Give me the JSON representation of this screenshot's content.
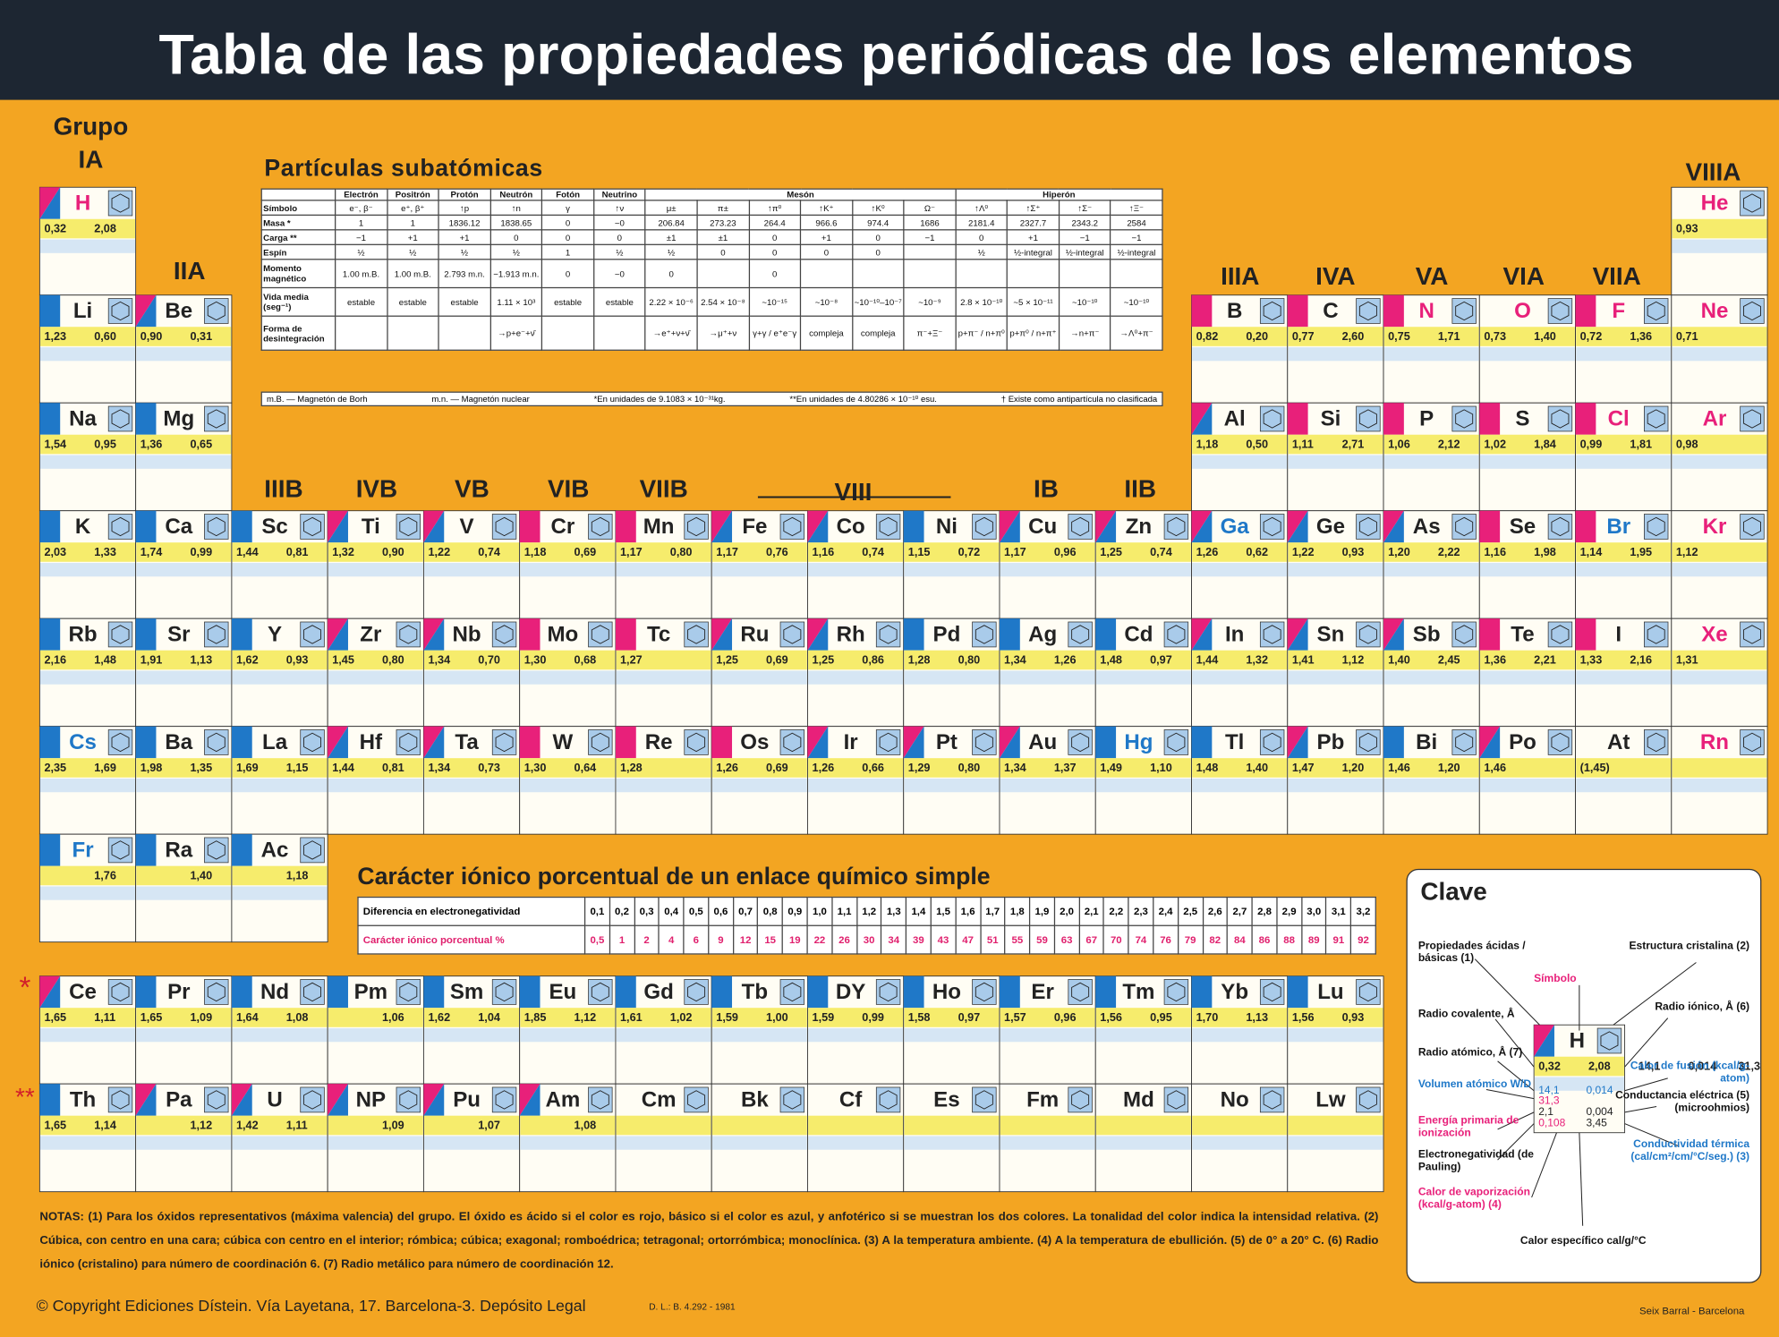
{
  "header": {
    "title": "Tabla de las propiedades periódicas de los elementos"
  },
  "group_prefix": "Grupo",
  "groups": [
    "IA",
    "IIA",
    "IIIB",
    "IVB",
    "VB",
    "VIB",
    "VIIB",
    "VIII",
    "IB",
    "IIB",
    "IIIA",
    "IVA",
    "VA",
    "VIA",
    "VIIA",
    "VIIIA"
  ],
  "periods": [
    [
      {
        "symbol": "H",
        "acid_base": "ab",
        "color": "#e8207a",
        "values": [
          "0,32",
          "2,08"
        ]
      },
      null,
      null,
      null,
      null,
      null,
      null,
      null,
      null,
      null,
      null,
      null,
      null,
      null,
      null,
      null,
      null,
      {
        "symbol": "He",
        "color": "#e8207a",
        "values": [
          "0,93",
          null
        ]
      }
    ],
    [
      {
        "symbol": "Li",
        "acid_base": "b",
        "values": [
          "1,23",
          "0,60"
        ]
      },
      {
        "symbol": "Be",
        "acid_base": "ab",
        "values": [
          "0,90",
          "0,31"
        ]
      },
      null,
      null,
      null,
      null,
      null,
      null,
      null,
      null,
      null,
      null,
      {
        "symbol": "B",
        "acid_base": "a",
        "values": [
          "0,82",
          "0,20"
        ]
      },
      {
        "symbol": "C",
        "acid_base": "a",
        "values": [
          "0,77",
          "2,60"
        ]
      },
      {
        "symbol": "N",
        "acid_base": "a",
        "color": "#e8207a",
        "values": [
          "0,75",
          "1,71"
        ]
      },
      {
        "symbol": "O",
        "color": "#e8207a",
        "values": [
          "0,73",
          "1,40"
        ]
      },
      {
        "symbol": "F",
        "acid_base": "a",
        "color": "#e8207a",
        "values": [
          "0,72",
          "1,36"
        ]
      },
      {
        "symbol": "Ne",
        "color": "#e8207a",
        "values": [
          "0,71",
          null
        ]
      }
    ],
    [
      {
        "symbol": "Na",
        "acid_base": "b",
        "values": [
          "1,54",
          "0,95"
        ]
      },
      {
        "symbol": "Mg",
        "acid_base": "b",
        "values": [
          "1,36",
          "0,65"
        ]
      },
      null,
      null,
      null,
      null,
      null,
      null,
      null,
      null,
      null,
      null,
      {
        "symbol": "Al",
        "acid_base": "ab",
        "values": [
          "1,18",
          "0,50"
        ]
      },
      {
        "symbol": "Si",
        "acid_base": "a",
        "values": [
          "1,11",
          "2,71"
        ]
      },
      {
        "symbol": "P",
        "acid_base": "a",
        "values": [
          "1,06",
          "2,12"
        ]
      },
      {
        "symbol": "S",
        "acid_base": "a",
        "values": [
          "1,02",
          "1,84"
        ]
      },
      {
        "symbol": "Cl",
        "acid_base": "a",
        "color": "#e8207a",
        "values": [
          "0,99",
          "1,81"
        ]
      },
      {
        "symbol": "Ar",
        "color": "#e8207a",
        "values": [
          "0,98",
          null
        ]
      }
    ],
    [
      {
        "symbol": "K",
        "acid_base": "b",
        "values": [
          "2,03",
          "1,33"
        ]
      },
      {
        "symbol": "Ca",
        "acid_base": "b",
        "values": [
          "1,74",
          "0,99"
        ]
      },
      {
        "symbol": "Sc",
        "acid_base": "b",
        "values": [
          "1,44",
          "0,81"
        ]
      },
      {
        "symbol": "Ti",
        "acid_base": "ab",
        "values": [
          "1,32",
          "0,90"
        ]
      },
      {
        "symbol": "V",
        "acid_base": "ab",
        "values": [
          "1,22",
          "0,74"
        ]
      },
      {
        "symbol": "Cr",
        "acid_base": "a",
        "values": [
          "1,18",
          "0,69"
        ]
      },
      {
        "symbol": "Mn",
        "acid_base": "a",
        "values": [
          "1,17",
          "0,80"
        ]
      },
      {
        "symbol": "Fe",
        "acid_base": "ab",
        "values": [
          "1,17",
          "0,76"
        ]
      },
      {
        "symbol": "Co",
        "acid_base": "ab",
        "values": [
          "1,16",
          "0,74"
        ]
      },
      {
        "symbol": "Ni",
        "acid_base": "b",
        "values": [
          "1,15",
          "0,72"
        ]
      },
      {
        "symbol": "Cu",
        "acid_base": "ab",
        "values": [
          "1,17",
          "0,96"
        ]
      },
      {
        "symbol": "Zn",
        "acid_base": "ab",
        "values": [
          "1,25",
          "0,74"
        ]
      },
      {
        "symbol": "Ga",
        "acid_base": "ab",
        "color": "#1f78c8",
        "values": [
          "1,26",
          "0,62"
        ]
      },
      {
        "symbol": "Ge",
        "acid_base": "ab",
        "values": [
          "1,22",
          "0,93"
        ]
      },
      {
        "symbol": "As",
        "acid_base": "ab",
        "values": [
          "1,20",
          "2,22"
        ]
      },
      {
        "symbol": "Se",
        "acid_base": "a",
        "values": [
          "1,16",
          "1,98"
        ]
      },
      {
        "symbol": "Br",
        "acid_base": "a",
        "color": "#1f78c8",
        "values": [
          "1,14",
          "1,95"
        ]
      },
      {
        "symbol": "Kr",
        "color": "#e8207a",
        "values": [
          "1,12",
          null
        ]
      }
    ],
    [
      {
        "symbol": "Rb",
        "acid_base": "b",
        "values": [
          "2,16",
          "1,48"
        ]
      },
      {
        "symbol": "Sr",
        "acid_base": "b",
        "values": [
          "1,91",
          "1,13"
        ]
      },
      {
        "symbol": "Y",
        "acid_base": "b",
        "values": [
          "1,62",
          "0,93"
        ]
      },
      {
        "symbol": "Zr",
        "acid_base": "ab",
        "values": [
          "1,45",
          "0,80"
        ]
      },
      {
        "symbol": "Nb",
        "acid_base": "ab",
        "values": [
          "1,34",
          "0,70"
        ]
      },
      {
        "symbol": "Mo",
        "acid_base": "a",
        "values": [
          "1,30",
          "0,68"
        ]
      },
      {
        "symbol": "Tc",
        "acid_base": "a",
        "values": [
          "1,27",
          null
        ]
      },
      {
        "symbol": "Ru",
        "acid_base": "ab",
        "values": [
          "1,25",
          "0,69"
        ]
      },
      {
        "symbol": "Rh",
        "acid_base": "ab",
        "values": [
          "1,25",
          "0,86"
        ]
      },
      {
        "symbol": "Pd",
        "acid_base": "b",
        "values": [
          "1,28",
          "0,80"
        ]
      },
      {
        "symbol": "Ag",
        "acid_base": "b",
        "values": [
          "1,34",
          "1,26"
        ]
      },
      {
        "symbol": "Cd",
        "acid_base": "b",
        "values": [
          "1,48",
          "0,97"
        ]
      },
      {
        "symbol": "In",
        "acid_base": "ab",
        "values": [
          "1,44",
          "1,32"
        ]
      },
      {
        "symbol": "Sn",
        "acid_base": "ab",
        "values": [
          "1,41",
          "1,12"
        ]
      },
      {
        "symbol": "Sb",
        "acid_base": "ab",
        "values": [
          "1,40",
          "2,45"
        ]
      },
      {
        "symbol": "Te",
        "acid_base": "a",
        "values": [
          "1,36",
          "2,21"
        ]
      },
      {
        "symbol": "I",
        "acid_base": "a",
        "values": [
          "1,33",
          "2,16"
        ]
      },
      {
        "symbol": "Xe",
        "color": "#e8207a",
        "values": [
          "1,31",
          null
        ]
      }
    ],
    [
      {
        "symbol": "Cs",
        "acid_base": "b",
        "color": "#1f78c8",
        "values": [
          "2,35",
          "1,69"
        ]
      },
      {
        "symbol": "Ba",
        "acid_base": "b",
        "values": [
          "1,98",
          "1,35"
        ]
      },
      {
        "symbol": "La",
        "acid_base": "b",
        "values": [
          "1,69",
          "1,15"
        ]
      },
      {
        "symbol": "Hf",
        "acid_base": "ab",
        "values": [
          "1,44",
          "0,81"
        ]
      },
      {
        "symbol": "Ta",
        "acid_base": "ab",
        "values": [
          "1,34",
          "0,73"
        ]
      },
      {
        "symbol": "W",
        "acid_base": "a",
        "values": [
          "1,30",
          "0,64"
        ]
      },
      {
        "symbol": "Re",
        "acid_base": "a",
        "values": [
          "1,28",
          null
        ]
      },
      {
        "symbol": "Os",
        "acid_base": "a",
        "values": [
          "1,26",
          "0,69"
        ]
      },
      {
        "symbol": "Ir",
        "acid_base": "ab",
        "values": [
          "1,26",
          "0,66"
        ]
      },
      {
        "symbol": "Pt",
        "acid_base": "ab",
        "values": [
          "1,29",
          "0,80"
        ]
      },
      {
        "symbol": "Au",
        "acid_base": "ab",
        "values": [
          "1,34",
          "1,37"
        ]
      },
      {
        "symbol": "Hg",
        "acid_base": "b",
        "color": "#1f78c8",
        "values": [
          "1,49",
          "1,10"
        ]
      },
      {
        "symbol": "Tl",
        "acid_base": "b",
        "values": [
          "1,48",
          "1,40"
        ]
      },
      {
        "symbol": "Pb",
        "acid_base": "ab",
        "values": [
          "1,47",
          "1,20"
        ]
      },
      {
        "symbol": "Bi",
        "acid_base": "b",
        "values": [
          "1,46",
          "1,20"
        ]
      },
      {
        "symbol": "Po",
        "acid_base": "ab",
        "values": [
          "1,46",
          null
        ]
      },
      {
        "symbol": "At",
        "values": [
          "(1,45)",
          null
        ]
      },
      {
        "symbol": "Rn",
        "color": "#e8207a",
        "values": [
          null,
          null
        ]
      }
    ],
    [
      {
        "symbol": "Fr",
        "acid_base": "b",
        "color": "#1f78c8",
        "values": [
          null,
          "1,76"
        ]
      },
      {
        "symbol": "Ra",
        "acid_base": "b",
        "values": [
          null,
          "1,40"
        ]
      },
      {
        "symbol": "Ac",
        "acid_base": "b",
        "values": [
          null,
          "1,18"
        ]
      },
      null,
      null,
      null,
      null,
      null,
      null,
      null,
      null,
      null,
      null,
      null,
      null,
      null,
      null,
      null
    ]
  ],
  "lanthanide_marker": "*",
  "actinide_marker": "**",
  "lanthanides": [
    {
      "symbol": "Ce",
      "acid_base": "ab",
      "values": [
        "1,65",
        "1,11"
      ]
    },
    {
      "symbol": "Pr",
      "acid_base": "b",
      "values": [
        "1,65",
        "1,09"
      ]
    },
    {
      "symbol": "Nd",
      "acid_base": "b",
      "values": [
        "1,64",
        "1,08"
      ]
    },
    {
      "symbol": "Pm",
      "acid_base": "b",
      "values": [
        null,
        "1,06"
      ]
    },
    {
      "symbol": "Sm",
      "acid_base": "b",
      "values": [
        "1,62",
        "1,04"
      ]
    },
    {
      "symbol": "Eu",
      "acid_base": "b",
      "values": [
        "1,85",
        "1,12"
      ]
    },
    {
      "symbol": "Gd",
      "acid_base": "b",
      "values": [
        "1,61",
        "1,02"
      ]
    },
    {
      "symbol": "Tb",
      "acid_base": "b",
      "values": [
        "1,59",
        "1,00"
      ]
    },
    {
      "symbol": "DY",
      "acid_base": "b",
      "values": [
        "1,59",
        "0,99"
      ]
    },
    {
      "symbol": "Ho",
      "acid_base": "b",
      "values": [
        "1,58",
        "0,97"
      ]
    },
    {
      "symbol": "Er",
      "acid_base": "b",
      "values": [
        "1,57",
        "0,96"
      ]
    },
    {
      "symbol": "Tm",
      "acid_base": "b",
      "values": [
        "1,56",
        "0,95"
      ]
    },
    {
      "symbol": "Yb",
      "acid_base": "b",
      "values": [
        "1,70",
        "1,13"
      ]
    },
    {
      "symbol": "Lu",
      "acid_base": "b",
      "values": [
        "1,56",
        "0,93"
      ]
    }
  ],
  "actinides": [
    {
      "symbol": "Th",
      "acid_base": "b",
      "values": [
        "1,65",
        "1,14"
      ]
    },
    {
      "symbol": "Pa",
      "acid_base": "ab",
      "values": [
        null,
        "1,12"
      ]
    },
    {
      "symbol": "U",
      "acid_base": "ab",
      "values": [
        "1,42",
        "1,11"
      ]
    },
    {
      "symbol": "NP",
      "acid_base": "ab",
      "values": [
        null,
        "1,09"
      ]
    },
    {
      "symbol": "Pu",
      "acid_base": "ab",
      "values": [
        null,
        "1,07"
      ]
    },
    {
      "symbol": "Am",
      "acid_base": "ab",
      "values": [
        null,
        "1,08"
      ]
    },
    {
      "symbol": "Cm"
    },
    {
      "symbol": "Bk"
    },
    {
      "symbol": "Cf"
    },
    {
      "symbol": "Es"
    },
    {
      "symbol": "Fm"
    },
    {
      "symbol": "Md"
    },
    {
      "symbol": "No"
    },
    {
      "symbol": "Lw"
    }
  ],
  "subatomic": {
    "title": "Partículas subatómicas",
    "columns": [
      "Electrón",
      "Positrón",
      "Protón",
      "Neutrón",
      "Fotón",
      "Neutrino"
    ],
    "column_groups": [
      "Mesón",
      "Hiperón"
    ],
    "rows": [
      {
        "label": "Símbolo",
        "cells": [
          "e⁻, β⁻",
          "e⁺, β⁺",
          "↑p",
          "↑n",
          "γ",
          "↑ν",
          "μ±",
          "π±",
          "↑π⁰",
          "↑K⁺",
          "↑K⁰",
          "Ω⁻",
          "↑Λ⁰",
          "↑Σ⁺",
          "↑Σ⁻",
          "↑Ξ⁻"
        ]
      },
      {
        "label": "Masa *",
        "cells": [
          "1",
          "1",
          "1836.12",
          "1838.65",
          "0",
          "~0",
          "206.84",
          "273.23",
          "264.4",
          "966.6",
          "974.4",
          "1686",
          "2181.4",
          "2327.7",
          "2343.2",
          "2584"
        ]
      },
      {
        "label": "Carga **",
        "cells": [
          "−1",
          "+1",
          "+1",
          "0",
          "0",
          "0",
          "±1",
          "±1",
          "0",
          "+1",
          "0",
          "−1",
          "0",
          "+1",
          "−1",
          "−1"
        ]
      },
      {
        "label": "Espín",
        "cells": [
          "½",
          "½",
          "½",
          "½",
          "1",
          "½",
          "½",
          "0",
          "0",
          "0",
          "0",
          null,
          "½",
          "½-integral",
          "½-integral",
          "½-integral"
        ]
      },
      {
        "label": "Momento magnético",
        "cells": [
          "1.00 m.B.",
          "1.00 m.B.",
          "2.793 m.n.",
          "−1.913 m.n.",
          "0",
          "~0",
          "0",
          null,
          "0",
          null,
          null,
          null,
          null,
          null,
          null,
          null
        ]
      },
      {
        "label": "Vida media (seg⁻¹)",
        "cells": [
          "estable",
          "estable",
          "estable",
          "1.11 × 10³",
          "estable",
          "estable",
          "2.22 × 10⁻⁶",
          "2.54 × 10⁻⁸",
          "~10⁻¹⁵",
          "~10⁻⁸",
          "~10⁻¹⁰–10⁻⁷",
          "~10⁻⁹",
          "2.8 × 10⁻¹⁰",
          "~5 × 10⁻¹¹",
          "~10⁻¹⁰",
          "~10⁻¹⁰"
        ]
      },
      {
        "label": "Forma de desintegración",
        "cells": [
          null,
          null,
          null,
          "→p+e⁻+ν̄",
          null,
          null,
          "→e⁺+ν+ν̄",
          "→μ⁺+ν",
          "γ+γ / e⁺e⁻γ",
          "compleja",
          "compleja",
          "π⁻+Ξ⁻",
          "p+π⁻ / n+π⁰",
          "p+π⁰ / n+π⁺",
          "→n+π⁻",
          "→Λ⁰+π⁻"
        ]
      }
    ],
    "footnotes": [
      "m.B. — Magnetón de Borh",
      "m.n. — Magnetón nuclear",
      "*En unidades de 9.1083 × 10⁻³¹kg.",
      "**En unidades de 4.80286 × 10⁻¹⁰ esu.",
      "† Existe como antipartícula no clasificada"
    ]
  },
  "ionic": {
    "title": "Carácter iónico porcentual de un enlace químico simple",
    "rows": [
      {
        "label": "Diferencia en electronegatividad",
        "cells": [
          "0,1",
          "0,2",
          "0,3",
          "0,4",
          "0,5",
          "0,6",
          "0,7",
          "0,8",
          "0,9",
          "1,0",
          "1,1",
          "1,2",
          "1,3",
          "1,4",
          "1,5",
          "1,6",
          "1,7",
          "1,8",
          "1,9",
          "2,0",
          "2,1",
          "2,2",
          "2,3",
          "2,4",
          "2,5",
          "2,6",
          "2,7",
          "2,8",
          "2,9",
          "3,0",
          "3,1",
          "3,2"
        ]
      },
      {
        "label": "Carácter iónico porcentual %",
        "cells": [
          "0,5",
          "1",
          "2",
          "4",
          "6",
          "9",
          "12",
          "15",
          "19",
          "22",
          "26",
          "30",
          "34",
          "39",
          "43",
          "47",
          "51",
          "55",
          "59",
          "63",
          "67",
          "70",
          "74",
          "76",
          "79",
          "82",
          "84",
          "86",
          "88",
          "89",
          "91",
          "92"
        ]
      }
    ]
  },
  "key": {
    "title": "Clave",
    "sample": {
      "symbol": "H",
      "acid_base": "ab",
      "values": [
        "0,32",
        "2,08",
        "14,1",
        "0,014",
        "31,3",
        "2,1",
        "0,004",
        "0,108",
        "3,45"
      ]
    },
    "labels": [
      "Propiedades ácidas / básicas (1)",
      "Estructura cristalina (2)",
      "Símbolo",
      "Radio covalente, Å",
      "Radio iónico, Å (6)",
      "Radio atómico, Å (7)",
      "Calor de fusión (kcal/g-atom)",
      "Volumen atómico W/D",
      "Conductancia eléctrica (5) (microohmios)",
      "Energía primaria de ionización",
      "Conductividad térmica (cal/cm²/cm/°C/seg.) (3)",
      "Electronegatividad (de Pauling)",
      "Calor de vaporización (kcal/g-atom) (4)",
      "Calor específico cal/g/°C"
    ]
  },
  "notes": "NOTAS: (1) Para los óxidos representativos (máxima valencia) del grupo. El óxido es ácido si el color es rojo, básico si el color es azul, y anfotérico si se muestran los dos colores. La tonalidad del color indica la intensidad relativa. (2) Cúbica, con centro en una cara; cúbica con centro en el interior; rómbica; cúbica; exagonal; romboédrica; tetragonal; ortorrómbica; monoclínica. (3) A la temperatura ambiente. (4) A la temperatura de ebullición. (5) de 0° a 20° C. (6) Radio iónico (cristalino) para número de coordinación 6. (7) Radio metálico para número de coordinación 12.",
  "copyright": "© Copyright Ediciones Dístein. Vía Layetana, 17. Barcelona-3. Depósito Legal",
  "legal": "D. L.: B. 4.292 - 1981",
  "publisher": "Seix Barral - Barcelona"
}
